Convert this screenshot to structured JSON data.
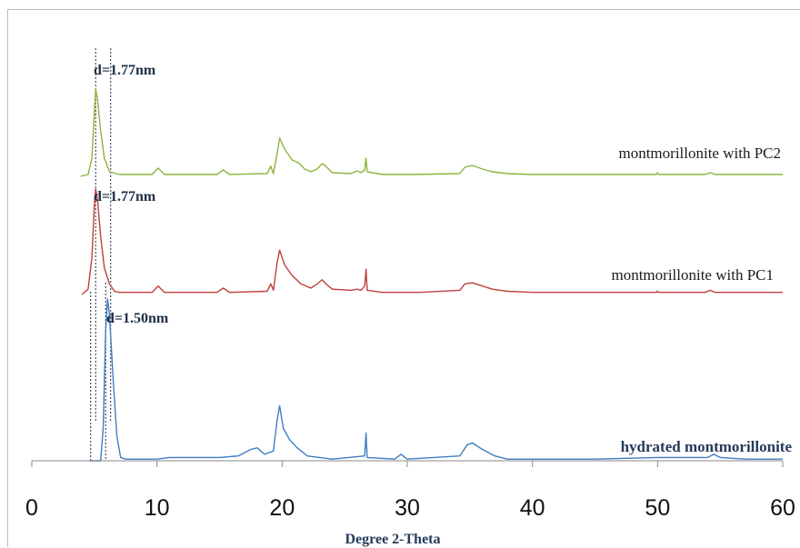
{
  "chart_data": {
    "type": "line",
    "xlabel": "Degree 2-Theta",
    "ylabel": "",
    "xlim": [
      0,
      60
    ],
    "x_ticks": [
      "0",
      "10",
      "20",
      "30",
      "40",
      "50",
      "60"
    ],
    "grid": false,
    "legend": "inline labels at right of each trace",
    "series": [
      {
        "name": "montmorillonite with PC2",
        "color": "#8db43e",
        "points": [
          [
            3.9,
            0
          ],
          [
            4.5,
            0.02
          ],
          [
            4.8,
            0.2
          ],
          [
            5.0,
            0.7
          ],
          [
            5.1,
            0.96
          ],
          [
            5.25,
            0.85
          ],
          [
            5.5,
            0.5
          ],
          [
            5.8,
            0.2
          ],
          [
            6.2,
            0.05
          ],
          [
            7,
            0.02
          ],
          [
            9.6,
            0.02
          ],
          [
            10.1,
            0.09
          ],
          [
            10.6,
            0.02
          ],
          [
            14.8,
            0.02
          ],
          [
            15.3,
            0.07
          ],
          [
            15.8,
            0.02
          ],
          [
            18.8,
            0.03
          ],
          [
            19.1,
            0.11
          ],
          [
            19.3,
            0.03
          ],
          [
            19.6,
            0.25
          ],
          [
            19.8,
            0.42
          ],
          [
            20.2,
            0.3
          ],
          [
            20.8,
            0.18
          ],
          [
            21.3,
            0.15
          ],
          [
            21.8,
            0.08
          ],
          [
            22.3,
            0.05
          ],
          [
            22.8,
            0.08
          ],
          [
            23.2,
            0.14
          ],
          [
            23.5,
            0.11
          ],
          [
            24,
            0.04
          ],
          [
            25.5,
            0.03
          ],
          [
            26,
            0.06
          ],
          [
            26.3,
            0.04
          ],
          [
            26.6,
            0.07
          ],
          [
            26.7,
            0.2
          ],
          [
            26.8,
            0.05
          ],
          [
            28,
            0.02
          ],
          [
            30.5,
            0.02
          ],
          [
            34.2,
            0.03
          ],
          [
            34.6,
            0.1
          ],
          [
            35.2,
            0.12
          ],
          [
            36,
            0.08
          ],
          [
            36.8,
            0.05
          ],
          [
            38,
            0.03
          ],
          [
            40,
            0.02
          ],
          [
            45,
            0.02
          ],
          [
            49.9,
            0.02
          ],
          [
            50,
            0.04
          ],
          [
            50.1,
            0.02
          ],
          [
            53.8,
            0.02
          ],
          [
            54.2,
            0.04
          ],
          [
            54.6,
            0.02
          ],
          [
            57,
            0.02
          ],
          [
            60,
            0.02
          ]
        ]
      },
      {
        "name": "montmorillonite with PC1",
        "color": "#c0403c",
        "points": [
          [
            4.0,
            0
          ],
          [
            4.5,
            0.05
          ],
          [
            4.8,
            0.35
          ],
          [
            5.0,
            0.85
          ],
          [
            5.1,
            1.0
          ],
          [
            5.25,
            0.9
          ],
          [
            5.5,
            0.55
          ],
          [
            5.8,
            0.25
          ],
          [
            6.2,
            0.1
          ],
          [
            6.6,
            0.03
          ],
          [
            7,
            0.02
          ],
          [
            9.6,
            0.02
          ],
          [
            10.1,
            0.08
          ],
          [
            10.6,
            0.02
          ],
          [
            14.8,
            0.02
          ],
          [
            15.3,
            0.06
          ],
          [
            15.8,
            0.02
          ],
          [
            18.8,
            0.03
          ],
          [
            19.1,
            0.1
          ],
          [
            19.3,
            0.04
          ],
          [
            19.6,
            0.3
          ],
          [
            19.8,
            0.42
          ],
          [
            20.2,
            0.28
          ],
          [
            20.8,
            0.18
          ],
          [
            21.5,
            0.1
          ],
          [
            22.3,
            0.06
          ],
          [
            22.8,
            0.1
          ],
          [
            23.2,
            0.14
          ],
          [
            23.5,
            0.1
          ],
          [
            24,
            0.05
          ],
          [
            25.5,
            0.04
          ],
          [
            26,
            0.05
          ],
          [
            26.3,
            0.04
          ],
          [
            26.6,
            0.08
          ],
          [
            26.7,
            0.24
          ],
          [
            26.8,
            0.04
          ],
          [
            28,
            0.02
          ],
          [
            31,
            0.02
          ],
          [
            34.2,
            0.04
          ],
          [
            34.6,
            0.1
          ],
          [
            35.2,
            0.11
          ],
          [
            36,
            0.08
          ],
          [
            36.8,
            0.05
          ],
          [
            38,
            0.03
          ],
          [
            40,
            0.02
          ],
          [
            45,
            0.02
          ],
          [
            49.9,
            0.02
          ],
          [
            50,
            0.03
          ],
          [
            50.1,
            0.02
          ],
          [
            53.8,
            0.02
          ],
          [
            54.2,
            0.04
          ],
          [
            54.6,
            0.02
          ],
          [
            57,
            0.02
          ],
          [
            60,
            0.02
          ]
        ]
      },
      {
        "name": "hydrated montmorillonite",
        "color": "#3f7dc3",
        "points": [
          [
            4.6,
            0
          ],
          [
            5.5,
            0
          ],
          [
            5.7,
            0.2
          ],
          [
            5.9,
            0.8
          ],
          [
            6.05,
            1.0
          ],
          [
            6.2,
            0.9
          ],
          [
            6.5,
            0.5
          ],
          [
            6.8,
            0.15
          ],
          [
            7.1,
            0.02
          ],
          [
            7.5,
            0.01
          ],
          [
            10,
            0.01
          ],
          [
            11,
            0.02
          ],
          [
            15,
            0.02
          ],
          [
            16.5,
            0.03
          ],
          [
            17.5,
            0.07
          ],
          [
            18,
            0.08
          ],
          [
            18.6,
            0.04
          ],
          [
            19.3,
            0.06
          ],
          [
            19.6,
            0.25
          ],
          [
            19.8,
            0.34
          ],
          [
            20.1,
            0.2
          ],
          [
            20.6,
            0.13
          ],
          [
            21.2,
            0.08
          ],
          [
            22,
            0.03
          ],
          [
            24,
            0.01
          ],
          [
            26.6,
            0.03
          ],
          [
            26.7,
            0.17
          ],
          [
            26.8,
            0.02
          ],
          [
            29,
            0.01
          ],
          [
            29.5,
            0.04
          ],
          [
            30,
            0.01
          ],
          [
            34.2,
            0.03
          ],
          [
            34.8,
            0.1
          ],
          [
            35.2,
            0.11
          ],
          [
            36,
            0.07
          ],
          [
            37,
            0.03
          ],
          [
            38,
            0.01
          ],
          [
            40,
            0.01
          ],
          [
            45,
            0.01
          ],
          [
            50,
            0.02
          ],
          [
            54,
            0.02
          ],
          [
            54.5,
            0.04
          ],
          [
            55,
            0.02
          ],
          [
            57,
            0.01
          ],
          [
            60,
            0.01
          ]
        ]
      }
    ],
    "annotations": {
      "d_top": "d=1.77nm",
      "d_middle": "d=1.77nm",
      "d_bottom": "d=1.50nm"
    }
  }
}
